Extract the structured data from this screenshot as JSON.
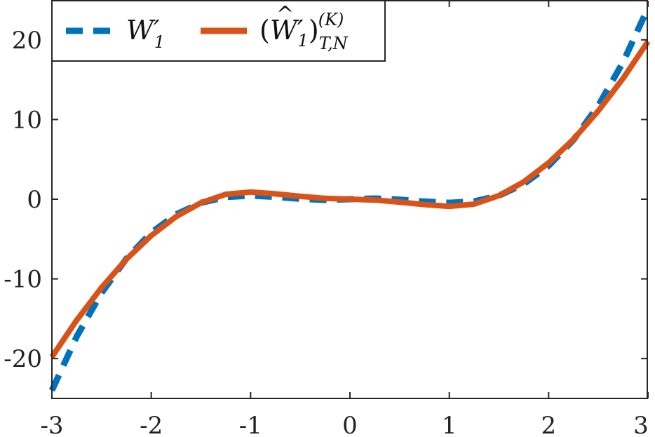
{
  "chart_data": {
    "type": "line",
    "title": "",
    "xlabel": "",
    "ylabel": "",
    "xlim": [
      -3,
      3
    ],
    "ylim": [
      -25,
      25
    ],
    "xticks": [
      -3,
      -2,
      -1,
      0,
      1,
      2,
      3
    ],
    "xtick_labels": [
      "-3",
      "-2",
      "-1",
      "0",
      "1",
      "2",
      "3"
    ],
    "yticks": [
      -20,
      -10,
      0,
      10,
      20
    ],
    "ytick_labels": [
      "-20",
      "-10",
      "0",
      "10",
      "20"
    ],
    "grid": false,
    "legend_position": "top-left",
    "series": [
      {
        "name": "W'_1",
        "style": "dashed",
        "color": "#0072BD",
        "x": [
          -3,
          -2.75,
          -2.5,
          -2.25,
          -2,
          -1.75,
          -1.5,
          -1.25,
          -1,
          -0.75,
          -0.5,
          -0.25,
          0,
          0.25,
          0.5,
          0.75,
          1,
          1.25,
          1.5,
          1.75,
          2,
          2.25,
          2.5,
          2.75,
          3
        ],
        "y": [
          -24,
          -17.23,
          -11.75,
          -7.45,
          -4.2,
          -1.91,
          -0.45,
          0.27,
          0.45,
          0.29,
          0.05,
          -0.09,
          0,
          0.09,
          -0.05,
          -0.29,
          -0.45,
          -0.27,
          0.45,
          1.91,
          4.2,
          7.45,
          11.75,
          17.23,
          24
        ]
      },
      {
        "name": "(\\widehat{W'_1})^{(K)}_{T,N}",
        "style": "solid",
        "color": "#D95319",
        "x": [
          -3,
          -2.75,
          -2.5,
          -2.25,
          -2,
          -1.75,
          -1.5,
          -1.25,
          -1,
          -0.75,
          -0.5,
          -0.25,
          0,
          0.25,
          0.5,
          0.75,
          1,
          1.25,
          1.5,
          1.75,
          2,
          2.25,
          2.5,
          2.75,
          3
        ],
        "y": [
          -19.8,
          -15.18,
          -11.09,
          -7.53,
          -4.56,
          -2.18,
          -0.45,
          0.62,
          0.9,
          0.67,
          0.36,
          0.11,
          0,
          -0.11,
          -0.36,
          -0.67,
          -0.9,
          -0.62,
          0.45,
          2.18,
          4.56,
          7.53,
          11.09,
          15.18,
          19.8
        ]
      }
    ]
  },
  "legend": {
    "items": [
      {
        "main": "W",
        "prime": "′",
        "sub": "1",
        "sup": ""
      },
      {
        "open": "(",
        "main": "W",
        "hat": "^",
        "prime": "′",
        "sub1": "1",
        "close": ")",
        "sub": "T,N",
        "sup": "(K)"
      }
    ]
  }
}
